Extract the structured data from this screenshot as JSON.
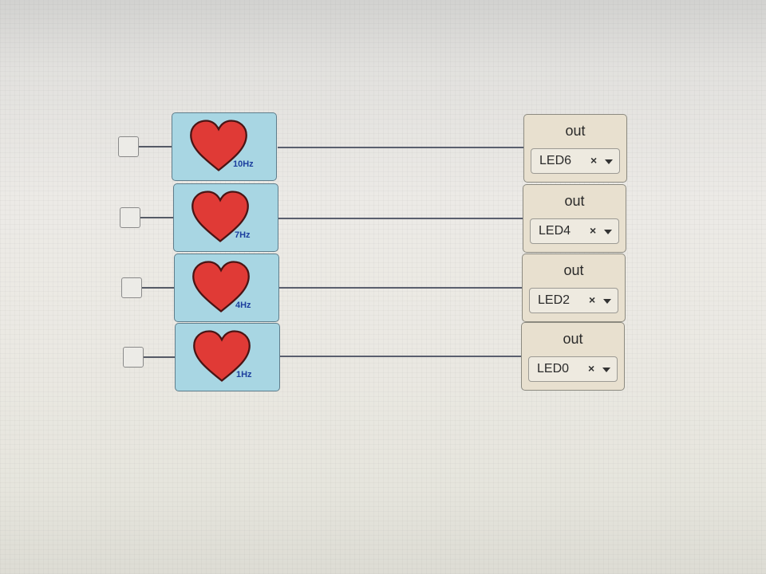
{
  "blocks": [
    {
      "frequency": "10Hz",
      "output_label": "out",
      "led": "LED6",
      "clear_glyph": "×"
    },
    {
      "frequency": "7Hz",
      "output_label": "out",
      "led": "LED4",
      "clear_glyph": "×"
    },
    {
      "frequency": "4Hz",
      "output_label": "out",
      "led": "LED2",
      "clear_glyph": "×"
    },
    {
      "frequency": "1Hz",
      "output_label": "out",
      "led": "LED0",
      "clear_glyph": "×"
    }
  ],
  "colors": {
    "heart_block": "#a8d6e3",
    "heart": "#e03a36",
    "frequency_text": "#1c3f9e",
    "output_block": "#e8e0cf",
    "wire": "#5a5f6e"
  },
  "icons": {
    "heart": "heart-icon",
    "input_port": "triangle-port-icon",
    "clear": "close-icon",
    "dropdown": "caret-down-icon"
  }
}
